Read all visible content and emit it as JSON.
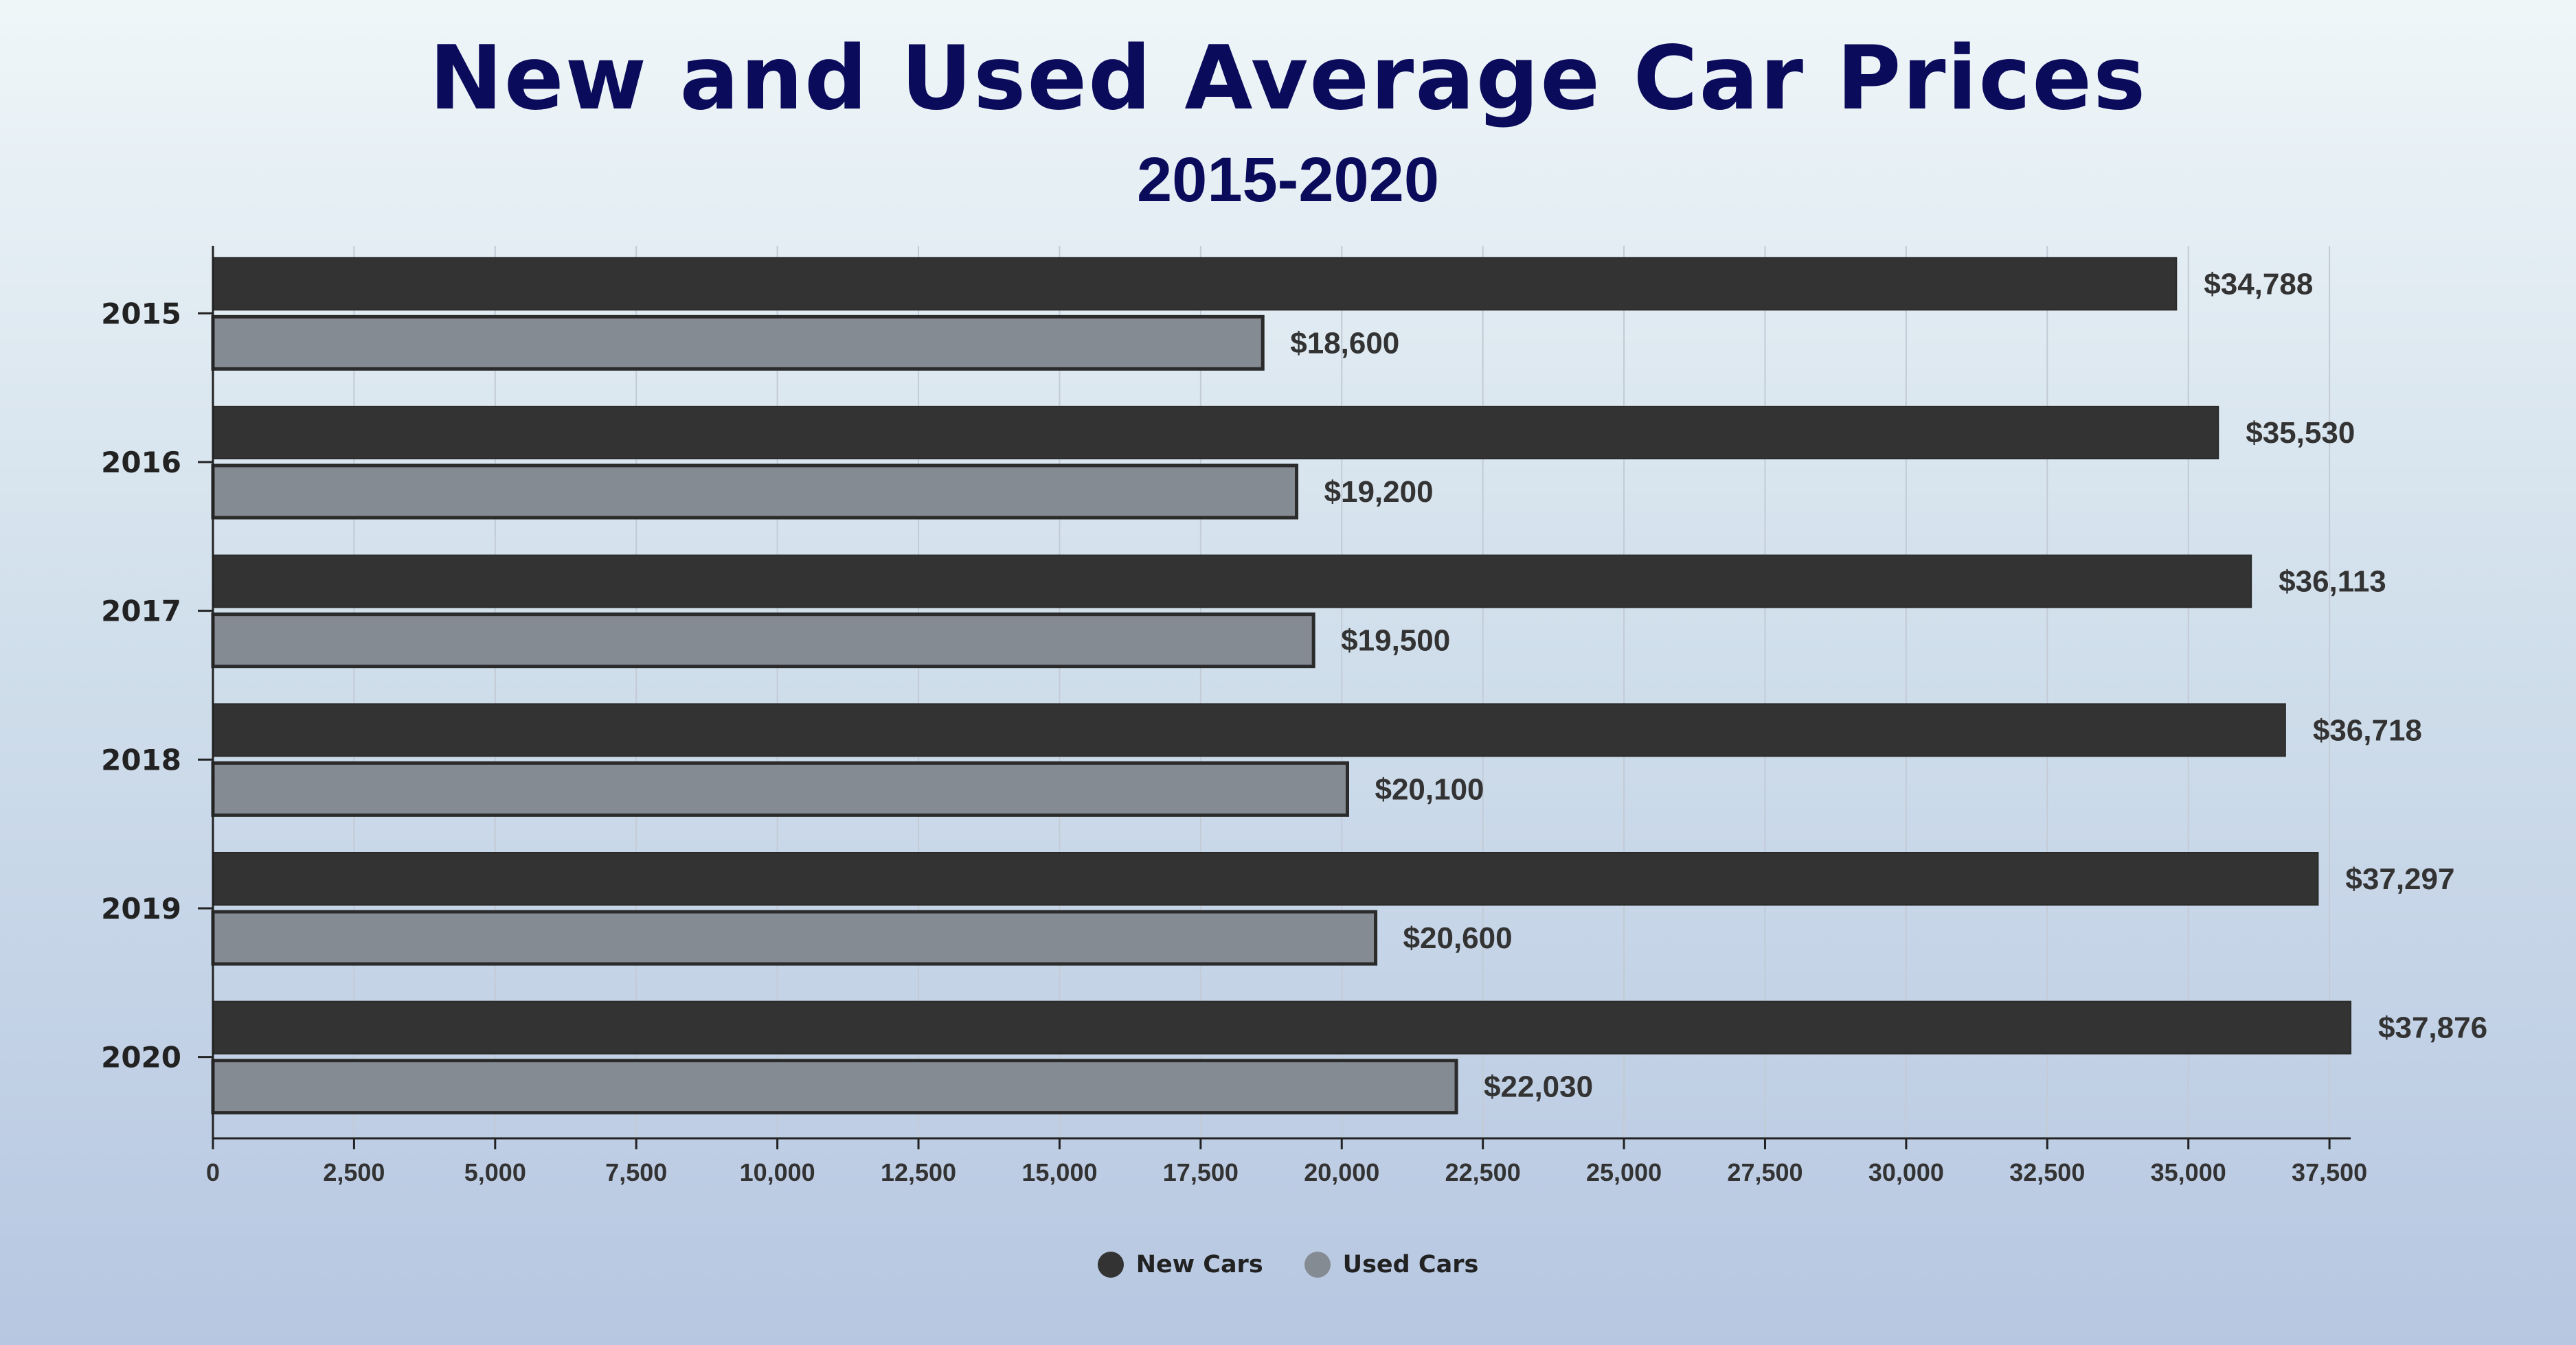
{
  "chart_data": {
    "type": "bar",
    "orientation": "horizontal",
    "title": "New and Used Average Car Prices",
    "subtitle": "2015-2020",
    "categories": [
      "2015",
      "2016",
      "2017",
      "2018",
      "2019",
      "2020"
    ],
    "series": [
      {
        "name": "New Cars",
        "color": "#333333",
        "values": [
          34788,
          35530,
          36113,
          36718,
          37297,
          37876
        ],
        "labels": [
          "$34,788",
          "$35,530",
          "$36,113",
          "$36,718",
          "$37,297",
          "$37,876"
        ]
      },
      {
        "name": "Used Cars",
        "color": "#858b93",
        "values": [
          18600,
          19200,
          19500,
          20100,
          20600,
          22030
        ],
        "labels": [
          "$18,600",
          "$19,200",
          "$19,500",
          "$20,100",
          "$20,600",
          "$22,030"
        ]
      }
    ],
    "xlim": [
      0,
      37876
    ],
    "xticks": [
      0,
      2500,
      5000,
      7500,
      10000,
      12500,
      15000,
      17500,
      20000,
      22500,
      25000,
      27500,
      30000,
      32500,
      35000,
      37500
    ],
    "xtick_labels": [
      "0",
      "2,500",
      "5,000",
      "7,500",
      "10,000",
      "12,500",
      "15,000",
      "17,500",
      "20,000",
      "22,500",
      "25,000",
      "27,500",
      "30,000",
      "32,500",
      "35,000",
      "37,500"
    ],
    "grid": "vertical",
    "legend": "bottom-center"
  }
}
